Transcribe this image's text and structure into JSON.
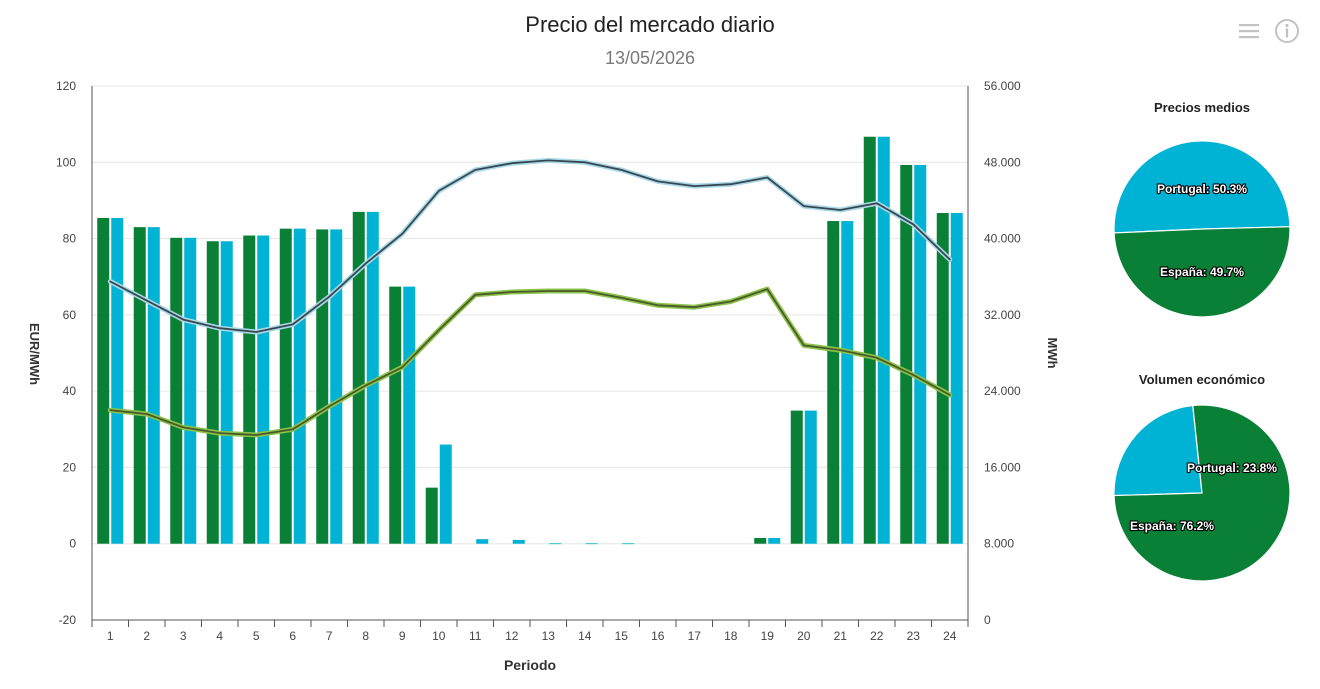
{
  "header": {
    "title": "Precio del mercado diario",
    "subtitle": "13/05/2026"
  },
  "toolbar": {
    "menu_icon": "hamburger-menu-icon",
    "info_icon": "info-circle-icon"
  },
  "colors": {
    "spain": "#0a8037",
    "portugal": "#00b2d3",
    "line_price_dark": "#37474f",
    "line_price_halo": "#a9d8e8",
    "line_volume_dark": "#4a5a2a",
    "line_volume_halo": "#8bc34a",
    "grid": "#e6e6e6",
    "axis": "#555555"
  },
  "chart_data": [
    {
      "type": "bar",
      "title": "",
      "xlabel": "Periodo",
      "ylabel": "EUR/MWh",
      "y2label": "MWh",
      "ylim": [
        -20,
        120
      ],
      "y2lim": [
        0,
        56000
      ],
      "yticks": [
        "-20",
        "0",
        "20",
        "40",
        "60",
        "80",
        "100",
        "120"
      ],
      "y2ticks": [
        "0",
        "8.000",
        "16.000",
        "24.000",
        "32.000",
        "40.000",
        "48.000",
        "56.000"
      ],
      "categories": [
        "1",
        "2",
        "3",
        "4",
        "5",
        "6",
        "7",
        "8",
        "9",
        "10",
        "11",
        "12",
        "13",
        "14",
        "15",
        "16",
        "17",
        "18",
        "19",
        "20",
        "21",
        "22",
        "23",
        "24"
      ],
      "series": [
        {
          "kind": "bar",
          "axis": "left",
          "color": "spain",
          "values": [
            85.4,
            83.0,
            80.2,
            79.3,
            80.8,
            82.6,
            82.4,
            87.0,
            67.4,
            14.7,
            0.0,
            0.0,
            0.0,
            0.0,
            0.0,
            0.0,
            0.0,
            0.0,
            1.5,
            34.9,
            84.6,
            106.7,
            99.3,
            86.7
          ]
        },
        {
          "kind": "bar",
          "axis": "left",
          "color": "portugal",
          "values": [
            85.4,
            83.0,
            80.2,
            79.3,
            80.8,
            82.6,
            82.4,
            87.0,
            67.4,
            26.0,
            1.2,
            1.0,
            0.1,
            0.1,
            0.1,
            0.0,
            0.0,
            0.0,
            1.5,
            34.9,
            84.6,
            106.7,
            99.3,
            86.7
          ]
        },
        {
          "kind": "line",
          "axis": "right",
          "color": "line_price",
          "values": [
            35500,
            33500,
            31500,
            30600,
            30200,
            31000,
            33900,
            37400,
            40500,
            45000,
            47200,
            47900,
            48200,
            48000,
            47200,
            46000,
            45500,
            45700,
            46400,
            43400,
            43000,
            43700,
            41500,
            37800
          ]
        },
        {
          "kind": "line",
          "axis": "right",
          "color": "line_volume",
          "values": [
            22000,
            21600,
            20200,
            19600,
            19400,
            20000,
            22400,
            24600,
            26500,
            30400,
            34100,
            34400,
            34500,
            34500,
            33800,
            33000,
            32800,
            33400,
            34700,
            28800,
            28300,
            27500,
            25700,
            23600
          ]
        }
      ]
    },
    {
      "type": "pie",
      "title": "Precios medios",
      "slices": [
        {
          "label": "Portugal",
          "value": 50.3,
          "text": "Portugal: 50.3%",
          "color": "portugal"
        },
        {
          "label": "España",
          "value": 49.7,
          "text": "España: 49.7%",
          "color": "spain"
        }
      ]
    },
    {
      "type": "pie",
      "title": "Volumen económico",
      "slices": [
        {
          "label": "Portugal",
          "value": 23.8,
          "text": "Portugal: 23.8%",
          "color": "portugal"
        },
        {
          "label": "España",
          "value": 76.2,
          "text": "España: 76.2%",
          "color": "spain"
        }
      ]
    }
  ]
}
